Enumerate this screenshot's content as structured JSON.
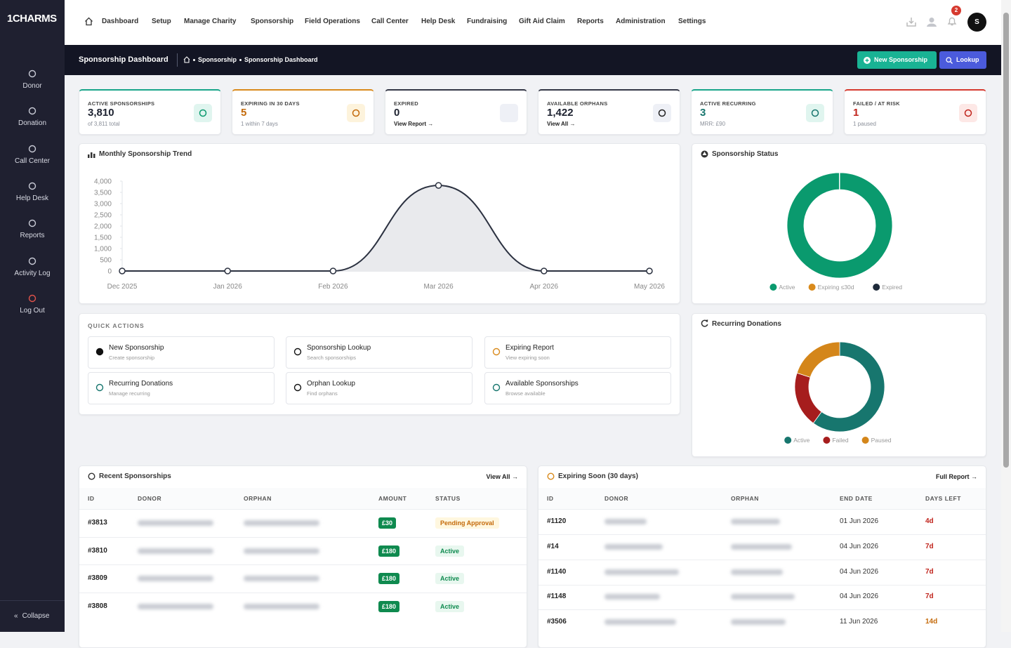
{
  "brand": "1CHARMS",
  "sidebar": {
    "items": [
      "Donor",
      "Donation",
      "Call Center",
      "Help Desk",
      "Reports",
      "Activity Log",
      "Log Out"
    ],
    "collapse": "Collapse"
  },
  "nav": {
    "items": [
      "Dashboard",
      "Setup",
      "Manage Charity",
      "Sponsorship",
      "Field Operations",
      "Call Center",
      "Help Desk",
      "Fundraising",
      "Gift Aid Claim",
      "Reports",
      "Administration",
      "Settings"
    ],
    "notifications": "2",
    "avatar": "S"
  },
  "header": {
    "title": "Sponsorship Dashboard",
    "breadcrumb": [
      "Sponsorship",
      "Sponsorship Dashboard"
    ],
    "actions": [
      "New Sponsorship",
      "Lookup"
    ]
  },
  "kpis": [
    {
      "label": "ACTIVE SPONSORSHIPS",
      "value": "3,810",
      "sub": "of 3,811 total"
    },
    {
      "label": "EXPIRING IN 30 DAYS",
      "value": "5",
      "sub": "1 within 7 days"
    },
    {
      "label": "EXPIRED",
      "value": "0",
      "sub": "View Report →"
    },
    {
      "label": "AVAILABLE ORPHANS",
      "value": "1,422",
      "sub": "View All →"
    },
    {
      "label": "ACTIVE RECURRING",
      "value": "3",
      "sub": "MRR: £90"
    },
    {
      "label": "FAILED / AT RISK",
      "value": "1",
      "sub": "1 paused"
    }
  ],
  "quick_actions": {
    "title": "QUICK ACTIONS",
    "items": [
      {
        "title": "New Sponsorship",
        "sub": "Create sponsorship"
      },
      {
        "title": "Sponsorship Lookup",
        "sub": "Search sponsorships"
      },
      {
        "title": "Expiring Report",
        "sub": "View expiring soon"
      },
      {
        "title": "Recurring Donations",
        "sub": "Manage recurring"
      },
      {
        "title": "Orphan Lookup",
        "sub": "Find orphans"
      },
      {
        "title": "Available Sponsorships",
        "sub": "Browse available"
      }
    ]
  },
  "tables": {
    "recent": {
      "title": "Recent Sponsorships",
      "link": "View All →",
      "columns": [
        "ID",
        "DONOR",
        "ORPHAN",
        "AMOUNT",
        "STATUS"
      ],
      "rows": [
        {
          "id": "#3813",
          "amount": "£30",
          "status": "Pending Approval"
        },
        {
          "id": "#3810",
          "amount": "£180",
          "status": "Active"
        },
        {
          "id": "#3809",
          "amount": "£180",
          "status": "Active"
        },
        {
          "id": "#3808",
          "amount": "£180",
          "status": "Active"
        }
      ]
    },
    "expiring": {
      "title": "Expiring Soon (30 days)",
      "link": "Full Report →",
      "columns": [
        "ID",
        "DONOR",
        "ORPHAN",
        "END DATE",
        "DAYS LEFT"
      ],
      "rows": [
        {
          "id": "#1120",
          "end": "01 Jun 2026",
          "days": "4d"
        },
        {
          "id": "#14",
          "end": "04 Jun 2026",
          "days": "7d"
        },
        {
          "id": "#1140",
          "end": "04 Jun 2026",
          "days": "7d"
        },
        {
          "id": "#1148",
          "end": "04 Jun 2026",
          "days": "7d"
        },
        {
          "id": "#3506",
          "end": "11 Jun 2026",
          "days": "14d"
        }
      ]
    }
  },
  "chart_data": [
    {
      "type": "line",
      "title": "Monthly Sponsorship Trend",
      "categories": [
        "Dec 2025",
        "Jan 2026",
        "Feb 2026",
        "Mar 2026",
        "Apr 2026",
        "May 2026"
      ],
      "values": [
        0,
        0,
        0,
        3810,
        0,
        0
      ],
      "color": "#2b3140",
      "ylim": [
        0,
        4000
      ],
      "yticks": [
        {
          "value": 4000,
          "label": "4,000"
        },
        {
          "value": 3500,
          "label": "3,500"
        },
        {
          "value": 3000,
          "label": "3,000"
        },
        {
          "value": 2500,
          "label": "2,500"
        },
        {
          "value": 2000,
          "label": "2,000"
        },
        {
          "value": 1500,
          "label": "1,500"
        },
        {
          "value": 1000,
          "label": "1,000"
        },
        500,
        0
      ]
    },
    {
      "type": "pie",
      "title": "Sponsorship Status",
      "categories": [
        "Active",
        "Expiring ≤30d",
        "Expired"
      ],
      "values": [
        3810,
        5,
        0
      ],
      "colors": [
        "#0a9a6e",
        "#d98a1c",
        "#1e2a3a"
      ]
    },
    {
      "type": "pie",
      "title": "Recurring Donations",
      "categories": [
        "Active",
        "Failed",
        "Paused"
      ],
      "values": [
        3,
        1,
        1
      ],
      "colors": [
        "#17766e",
        "#a61d1d",
        "#d4861a"
      ]
    }
  ]
}
